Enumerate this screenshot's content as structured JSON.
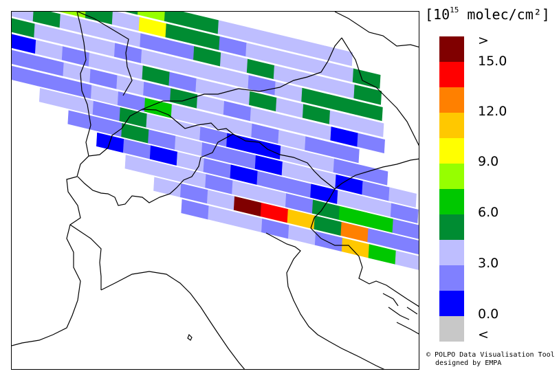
{
  "legend": {
    "units_prefix": "[10",
    "units_exp": "15",
    "units_suffix": " molec/cm²]",
    "bins": [
      {
        "color": "#800000"
      },
      {
        "color": "#ff0000"
      },
      {
        "color": "#ff8000"
      },
      {
        "color": "#ffc800"
      },
      {
        "color": "#ffff00"
      },
      {
        "color": "#96ff00"
      },
      {
        "color": "#00c800"
      },
      {
        "color": "#008c32"
      },
      {
        "color": "#bebeff"
      },
      {
        "color": "#8080ff"
      },
      {
        "color": "#0000ff"
      },
      {
        "color": "#c8c8c8"
      }
    ],
    "labels": [
      ">",
      "15.0",
      "12.0",
      "9.0",
      "6.0",
      "3.0",
      "0.0",
      "<"
    ]
  },
  "credit": {
    "line1": "© POLPO Data Visualisation Tool",
    "line2": "designed by EMPA"
  },
  "swath": {
    "palette": [
      "#0000ff",
      "#8080ff",
      "#bebeff",
      "#008c32",
      "#00c800",
      "#96ff00",
      "#ffff00",
      "#ffc800",
      "#ff8000",
      "#ff0000",
      "#800000"
    ],
    "rows": [
      [
        2,
        2,
        3,
        3,
        3,
        5,
        3,
        3,
        2,
        2,
        2,
        2,
        2
      ],
      [
        1,
        2,
        5,
        3,
        2,
        6,
        3,
        3,
        1,
        2,
        2,
        2,
        2,
        3
      ],
      [
        2,
        3,
        2,
        2,
        2,
        1,
        1,
        3,
        2,
        3,
        2,
        2,
        2,
        3
      ],
      [
        3,
        2,
        2,
        2,
        1,
        2,
        2,
        2,
        2,
        1,
        2,
        3,
        3,
        3
      ],
      [
        0,
        2,
        1,
        2,
        2,
        3,
        1,
        2,
        2,
        3,
        2,
        3,
        2,
        2
      ],
      [
        1,
        1,
        2,
        1,
        2,
        1,
        3,
        2,
        1,
        2,
        2,
        2,
        0,
        1
      ],
      [
        1,
        1,
        1,
        2,
        1,
        4,
        2,
        2,
        2,
        1,
        2,
        1,
        1
      ],
      [
        2,
        2,
        1,
        3,
        2,
        2,
        1,
        0,
        0,
        2,
        2,
        1,
        1
      ],
      [
        1,
        1,
        3,
        1,
        2,
        1,
        1,
        0,
        2,
        2,
        0,
        1,
        2
      ],
      [
        0,
        1,
        0,
        2,
        1,
        0,
        1,
        1,
        0,
        2,
        2,
        1
      ],
      [
        2,
        2,
        2,
        1,
        2,
        2,
        1,
        3,
        4,
        4,
        1,
        2
      ],
      [
        2,
        1,
        2,
        10,
        9,
        7,
        3,
        8,
        1,
        1,
        2
      ],
      [
        1,
        2,
        2,
        1,
        2,
        1,
        7,
        4,
        2,
        2
      ]
    ]
  }
}
